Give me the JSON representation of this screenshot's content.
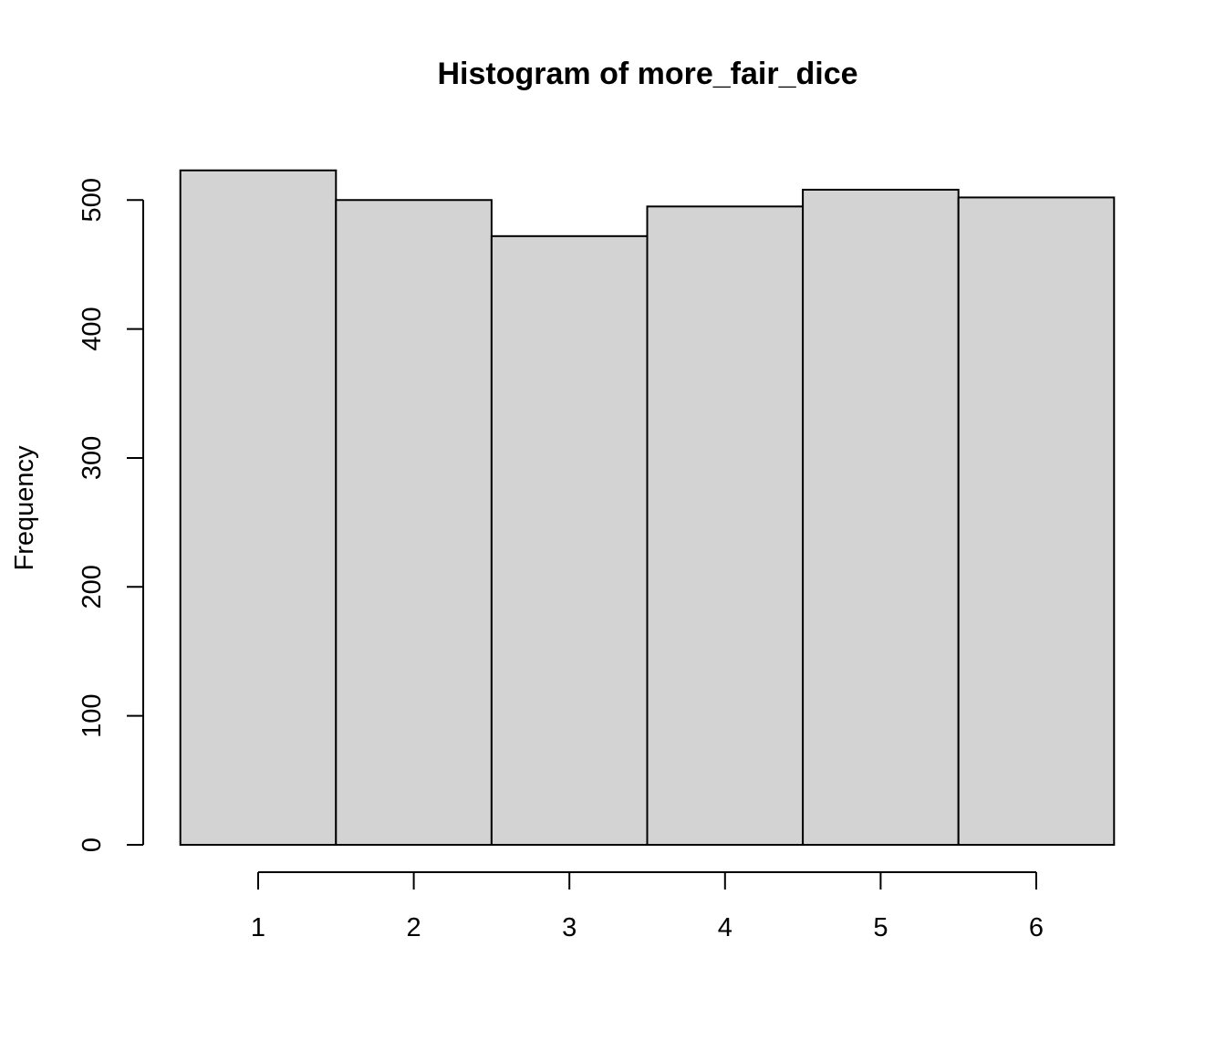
{
  "chart_data": {
    "type": "bar",
    "title": "Histogram of more_fair_dice",
    "xlabel": "",
    "ylabel": "Frequency",
    "categories": [
      "1",
      "2",
      "3",
      "4",
      "5",
      "6"
    ],
    "values": [
      523,
      500,
      472,
      495,
      508,
      502
    ],
    "bin_edges": [
      0.5,
      1.5,
      2.5,
      3.5,
      4.5,
      5.5,
      6.5
    ],
    "x_ticks": [
      1,
      2,
      3,
      4,
      5,
      6
    ],
    "y_ticks": [
      0,
      100,
      200,
      300,
      400,
      500
    ],
    "ylim": [
      0,
      523
    ],
    "bar_color": "#d3d3d3",
    "grid": false,
    "legend": "none"
  }
}
